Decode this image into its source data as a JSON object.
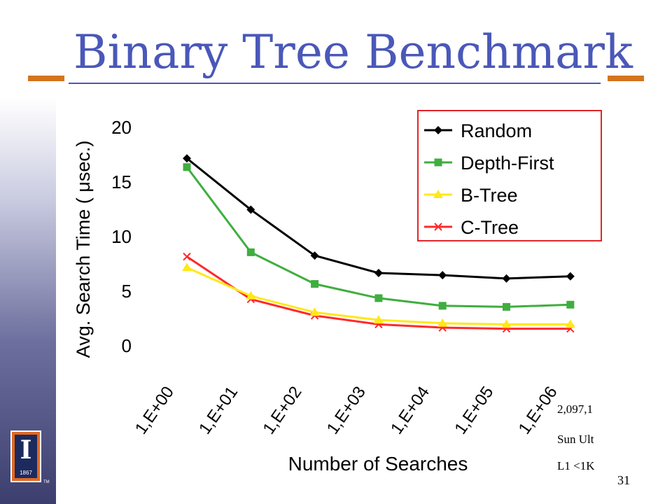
{
  "slide": {
    "title": "Binary Tree Benchmark",
    "page_number": "31",
    "notes": [
      "2,097,1",
      "Sun Ult",
      "L1 <1K"
    ],
    "logo": {
      "letter": "I",
      "year": "1867",
      "tm": "TM"
    }
  },
  "colors": {
    "title": "#4a58b8",
    "accent_bar": "#d2751e",
    "legend_border": "#e0262a"
  },
  "chart_data": {
    "type": "line",
    "title": "",
    "xlabel": "Number of Searches",
    "ylabel": "Avg. Search Time ( μsec.)",
    "categories": [
      "1,E+00",
      "1,E+01",
      "1,E+02",
      "1,E+03",
      "1,E+04",
      "1,E+05",
      "1,E+06"
    ],
    "ylim": [
      0,
      20
    ],
    "yticks": [
      0,
      5,
      10,
      15,
      20
    ],
    "grid": false,
    "legend": "top-right",
    "series": [
      {
        "name": "Random",
        "color": "#000000",
        "marker": "diamond",
        "values": [
          17.1,
          12.4,
          8.2,
          6.6,
          6.4,
          6.1,
          6.3
        ]
      },
      {
        "name": "Depth-First",
        "color": "#3fae3f",
        "marker": "square",
        "values": [
          16.3,
          8.5,
          5.6,
          4.3,
          3.6,
          3.5,
          3.7
        ]
      },
      {
        "name": "B-Tree",
        "color": "#ffe81a",
        "marker": "triangle",
        "values": [
          7.1,
          4.5,
          3.0,
          2.3,
          2.0,
          1.9,
          1.9
        ]
      },
      {
        "name": "C-Tree",
        "color": "#ff2a2a",
        "marker": "x",
        "values": [
          8.1,
          4.2,
          2.7,
          1.9,
          1.6,
          1.5,
          1.5
        ]
      }
    ]
  }
}
